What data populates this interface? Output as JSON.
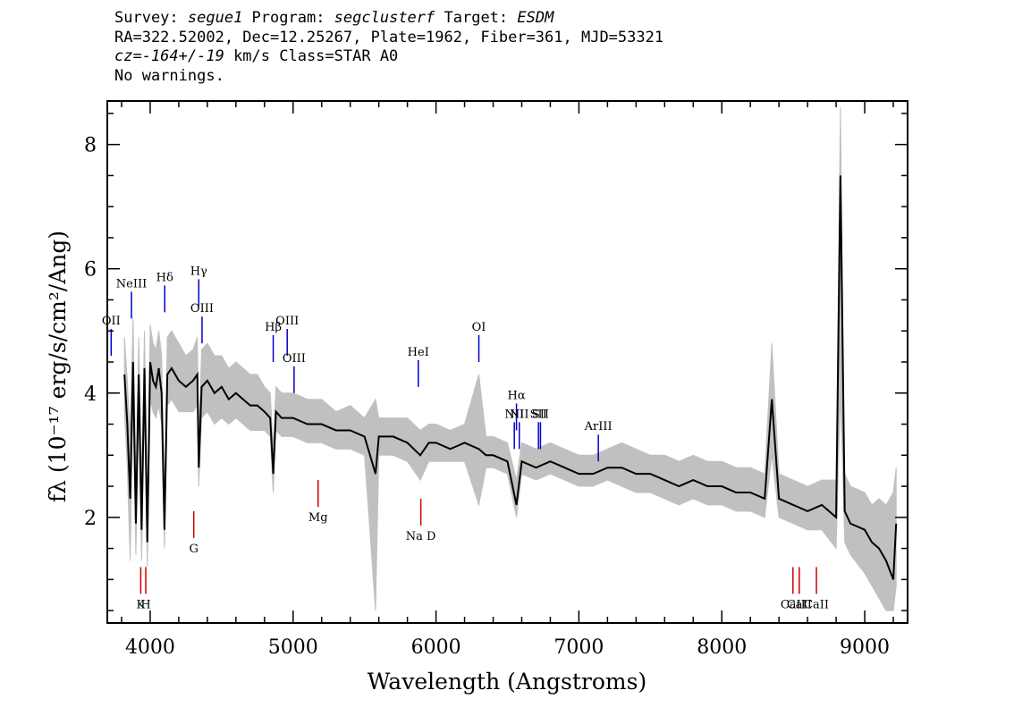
{
  "header": {
    "line1": {
      "survey_label": "Survey: ",
      "survey": "segue1",
      "program_label": " Program: ",
      "program": "segclusterf",
      "target_label": " Target: ",
      "target": "ESDM"
    },
    "line2": "RA=322.52002, Dec=12.25267, Plate=1962, Fiber=361, MJD=53321",
    "line3": {
      "cz": "cz=-164+/-19",
      "rest": " km/s Class=STAR A0"
    },
    "line4": "No warnings."
  },
  "chart_data": {
    "type": "line",
    "xlabel": "Wavelength (Angstroms)",
    "ylabel": "fλ (10⁻¹⁷ erg/s/cm²/Ang)",
    "xlim": [
      3700,
      9300
    ],
    "ylim": [
      0.3,
      8.7
    ],
    "x_ticks": [
      4000,
      5000,
      6000,
      7000,
      8000,
      9000
    ],
    "y_ticks": [
      2,
      4,
      6,
      8
    ],
    "colors": {
      "flux": "#000000",
      "error_band": "#c0c0c0",
      "emission": "#0000cc",
      "absorption": "#cc0000"
    },
    "series": [
      {
        "wavelength": [
          3820,
          3840,
          3860,
          3880,
          3900,
          3920,
          3940,
          3960,
          3980,
          4000,
          4020,
          4040,
          4060,
          4080,
          4100,
          4120,
          4150,
          4200,
          4250,
          4300,
          4330,
          4340,
          4360,
          4400,
          4450,
          4500,
          4550,
          4600,
          4650,
          4700,
          4750,
          4800,
          4840,
          4861,
          4880,
          4920,
          4960,
          5000,
          5100,
          5200,
          5300,
          5400,
          5500,
          5577,
          5600,
          5700,
          5800,
          5890,
          5950,
          6000,
          6100,
          6200,
          6300,
          6350,
          6400,
          6500,
          6563,
          6600,
          6700,
          6800,
          6900,
          7000,
          7100,
          7200,
          7300,
          7400,
          7500,
          7600,
          7700,
          7800,
          7900,
          8000,
          8100,
          8200,
          8300,
          8350,
          8400,
          8500,
          8600,
          8700,
          8800,
          8830,
          8860,
          8900,
          9000,
          9050,
          9100,
          9150,
          9200,
          9220
        ],
        "flux": [
          4.3,
          3.5,
          2.3,
          4.5,
          1.9,
          4.3,
          1.8,
          4.4,
          1.6,
          4.5,
          4.2,
          4.1,
          4.4,
          4.0,
          1.8,
          4.3,
          4.4,
          4.2,
          4.1,
          4.2,
          4.3,
          2.8,
          4.1,
          4.2,
          4.0,
          4.1,
          3.9,
          4.0,
          3.9,
          3.8,
          3.8,
          3.7,
          3.6,
          2.7,
          3.7,
          3.6,
          3.6,
          3.6,
          3.5,
          3.5,
          3.4,
          3.4,
          3.3,
          2.7,
          3.3,
          3.3,
          3.2,
          3.0,
          3.2,
          3.2,
          3.1,
          3.2,
          3.1,
          3.0,
          3.0,
          2.9,
          2.2,
          2.9,
          2.8,
          2.9,
          2.8,
          2.7,
          2.7,
          2.8,
          2.8,
          2.7,
          2.7,
          2.6,
          2.5,
          2.6,
          2.5,
          2.5,
          2.4,
          2.4,
          2.3,
          3.9,
          2.3,
          2.2,
          2.1,
          2.2,
          2.0,
          7.5,
          2.1,
          1.9,
          1.8,
          1.6,
          1.5,
          1.3,
          1.0,
          1.9
        ],
        "band_low": [
          3.7,
          2.8,
          1.3,
          3.8,
          1.4,
          3.7,
          1.3,
          3.8,
          1.2,
          3.9,
          3.7,
          3.6,
          3.8,
          3.5,
          1.5,
          3.8,
          3.9,
          3.7,
          3.7,
          3.7,
          3.8,
          2.5,
          3.6,
          3.7,
          3.5,
          3.6,
          3.5,
          3.6,
          3.5,
          3.4,
          3.4,
          3.4,
          3.3,
          2.4,
          3.4,
          3.3,
          3.3,
          3.3,
          3.2,
          3.2,
          3.1,
          3.1,
          3.0,
          0.5,
          3.0,
          3.0,
          2.9,
          2.6,
          2.9,
          2.9,
          2.9,
          2.9,
          2.2,
          2.8,
          2.8,
          2.7,
          2.0,
          2.7,
          2.6,
          2.7,
          2.6,
          2.5,
          2.5,
          2.6,
          2.5,
          2.4,
          2.4,
          2.3,
          2.2,
          2.3,
          2.2,
          2.2,
          2.1,
          2.1,
          2.0,
          3.0,
          2.0,
          1.9,
          1.8,
          1.8,
          1.5,
          4.0,
          1.6,
          1.4,
          1.1,
          0.9,
          0.7,
          0.5,
          0.5,
          0.9
        ],
        "band_high": [
          4.9,
          4.2,
          3.3,
          5.2,
          2.6,
          4.9,
          2.5,
          5.0,
          2.2,
          5.1,
          4.8,
          4.7,
          5.0,
          4.6,
          2.3,
          4.9,
          5.0,
          4.8,
          4.6,
          4.7,
          4.9,
          3.3,
          4.7,
          4.8,
          4.6,
          4.6,
          4.4,
          4.5,
          4.4,
          4.3,
          4.3,
          4.1,
          4.0,
          3.1,
          4.1,
          4.0,
          4.0,
          4.0,
          3.9,
          3.9,
          3.7,
          3.8,
          3.6,
          3.9,
          3.6,
          3.6,
          3.6,
          3.4,
          3.5,
          3.5,
          3.4,
          3.5,
          4.3,
          3.3,
          3.3,
          3.2,
          2.6,
          3.2,
          3.1,
          3.2,
          3.1,
          3.0,
          3.0,
          3.1,
          3.2,
          3.1,
          3.0,
          3.0,
          2.9,
          3.0,
          2.9,
          2.9,
          2.8,
          2.8,
          2.7,
          4.8,
          2.7,
          2.6,
          2.5,
          2.6,
          2.6,
          8.6,
          2.7,
          2.5,
          2.4,
          2.2,
          2.3,
          2.2,
          2.4,
          2.8
        ]
      }
    ],
    "emission_lines": [
      {
        "label": "OII",
        "wavelength": 3727,
        "y": 4.6
      },
      {
        "label": "NeIII",
        "wavelength": 3869,
        "y": 5.2
      },
      {
        "label": "Hδ",
        "wavelength": 4102,
        "y": 5.3
      },
      {
        "label": "Hγ",
        "wavelength": 4340,
        "y": 5.4
      },
      {
        "label": "OIII",
        "wavelength": 4363,
        "y": 4.8
      },
      {
        "label": "Hβ",
        "wavelength": 4861,
        "y": 4.5
      },
      {
        "label": "OIII",
        "wavelength": 4959,
        "y": 4.6
      },
      {
        "label": "OIII",
        "wavelength": 5007,
        "y": 4.0
      },
      {
        "label": "HeI",
        "wavelength": 5876,
        "y": 4.1
      },
      {
        "label": "OI",
        "wavelength": 6300,
        "y": 4.5
      },
      {
        "label": "NII",
        "wavelength": 6548,
        "y": 3.1
      },
      {
        "label": "Hα",
        "wavelength": 6563,
        "y": 3.4
      },
      {
        "label": "NII",
        "wavelength": 6583,
        "y": 3.1
      },
      {
        "label": "SII",
        "wavelength": 6717,
        "y": 3.1
      },
      {
        "label": "SII",
        "wavelength": 6731,
        "y": 3.1
      },
      {
        "label": "ArIII",
        "wavelength": 7136,
        "y": 2.9
      }
    ],
    "absorption_lines": [
      {
        "label": "K",
        "wavelength": 3934,
        "y": 1.2
      },
      {
        "label": "H",
        "wavelength": 3969,
        "y": 1.2
      },
      {
        "label": "G",
        "wavelength": 4305,
        "y": 2.1
      },
      {
        "label": "Mg",
        "wavelength": 5175,
        "y": 2.6
      },
      {
        "label": "Na D",
        "wavelength": 5894,
        "y": 2.3
      },
      {
        "label": "CaII",
        "wavelength": 8498,
        "y": 1.2
      },
      {
        "label": "CaII",
        "wavelength": 8542,
        "y": 1.2
      },
      {
        "label": "CaII",
        "wavelength": 8662,
        "y": 1.2
      }
    ]
  }
}
